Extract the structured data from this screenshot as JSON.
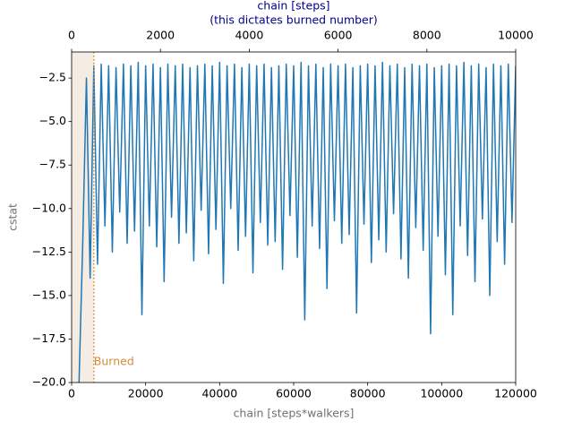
{
  "chart_data": {
    "type": "line",
    "xlabel": "chain [steps*walkers]",
    "ylabel": "cstat",
    "x2label": [
      "chain [steps]",
      "(this dictates burned number)"
    ],
    "xlim": [
      0,
      120000
    ],
    "xticks": [
      0,
      20000,
      40000,
      60000,
      80000,
      100000,
      120000
    ],
    "x2lim": [
      0,
      10000
    ],
    "x2ticks": [
      0,
      2000,
      4000,
      6000,
      8000,
      10000
    ],
    "ylim": [
      -20,
      -1.0
    ],
    "yticks": [
      {
        "value": -2.5,
        "label": "−2.5"
      },
      {
        "value": -5.0,
        "label": "−5.0"
      },
      {
        "value": -7.5,
        "label": "−7.5"
      },
      {
        "value": -10.0,
        "label": "−10.0"
      },
      {
        "value": -12.5,
        "label": "−12.5"
      },
      {
        "value": -15.0,
        "label": "−15.0"
      },
      {
        "value": -17.5,
        "label": "−17.5"
      },
      {
        "value": -20.0,
        "label": "−20.0"
      }
    ],
    "burn": {
      "x": 6000,
      "label": "Burned",
      "color": "#d58a37",
      "shade": "#f5ede3"
    },
    "x": [
      2000,
      3000,
      4000,
      5000,
      6000,
      7000,
      8000,
      9000,
      10000,
      11000,
      12000,
      13000,
      14000,
      15000,
      16000,
      17000,
      18000,
      19000,
      20000,
      21000,
      22000,
      23000,
      24000,
      25000,
      26000,
      27000,
      28000,
      29000,
      30000,
      31000,
      32000,
      33000,
      34000,
      35000,
      36000,
      37000,
      38000,
      39000,
      40000,
      41000,
      42000,
      43000,
      44000,
      45000,
      46000,
      47000,
      48000,
      49000,
      50000,
      51000,
      52000,
      53000,
      54000,
      55000,
      56000,
      57000,
      58000,
      59000,
      60000,
      61000,
      62000,
      63000,
      64000,
      65000,
      66000,
      67000,
      68000,
      69000,
      70000,
      71000,
      72000,
      73000,
      74000,
      75000,
      76000,
      77000,
      78000,
      79000,
      80000,
      81000,
      82000,
      83000,
      84000,
      85000,
      86000,
      87000,
      88000,
      89000,
      90000,
      91000,
      92000,
      93000,
      94000,
      95000,
      96000,
      97000,
      98000,
      99000,
      100000,
      101000,
      102000,
      103000,
      104000,
      105000,
      106000,
      107000,
      108000,
      109000,
      110000,
      111000,
      112000,
      113000,
      114000,
      115000,
      116000,
      117000,
      118000,
      119000,
      120000
    ],
    "series": [
      {
        "color": "#1f77b4",
        "values": [
          -20,
          -12,
          -2.5,
          -14,
          -1.8,
          -13.2,
          -1.7,
          -11.0,
          -1.8,
          -12.5,
          -1.9,
          -10.2,
          -1.7,
          -12.0,
          -1.8,
          -11.3,
          -1.6,
          -16.1,
          -1.8,
          -11.0,
          -1.7,
          -12.2,
          -1.9,
          -14.2,
          -1.7,
          -10.5,
          -1.8,
          -12.0,
          -1.7,
          -11.4,
          -1.9,
          -13.0,
          -1.8,
          -10.1,
          -1.7,
          -12.6,
          -1.8,
          -11.2,
          -1.6,
          -14.3,
          -1.8,
          -10.0,
          -1.7,
          -12.4,
          -1.9,
          -11.6,
          -1.7,
          -13.7,
          -1.8,
          -10.8,
          -1.7,
          -12.1,
          -1.9,
          -11.9,
          -1.8,
          -13.5,
          -1.7,
          -10.4,
          -1.8,
          -12.8,
          -1.6,
          -16.4,
          -1.8,
          -11.0,
          -1.7,
          -12.3,
          -1.9,
          -14.6,
          -1.7,
          -10.7,
          -1.8,
          -12.0,
          -1.7,
          -11.5,
          -1.9,
          -16.0,
          -1.8,
          -10.9,
          -1.7,
          -13.1,
          -1.8,
          -11.8,
          -1.6,
          -12.5,
          -1.8,
          -10.3,
          -1.7,
          -12.9,
          -1.9,
          -14.0,
          -1.7,
          -11.1,
          -1.8,
          -12.4,
          -1.7,
          -17.2,
          -1.9,
          -11.6,
          -1.8,
          -13.8,
          -1.7,
          -16.1,
          -1.8,
          -11.0,
          -1.6,
          -12.7,
          -1.8,
          -14.2,
          -1.7,
          -10.6,
          -1.9,
          -15.0,
          -1.7,
          -11.9,
          -1.8,
          -13.2,
          -1.7,
          -10.8,
          -1.8
        ]
      }
    ],
    "label_color": "#707070",
    "x2_color": "#00008b"
  }
}
